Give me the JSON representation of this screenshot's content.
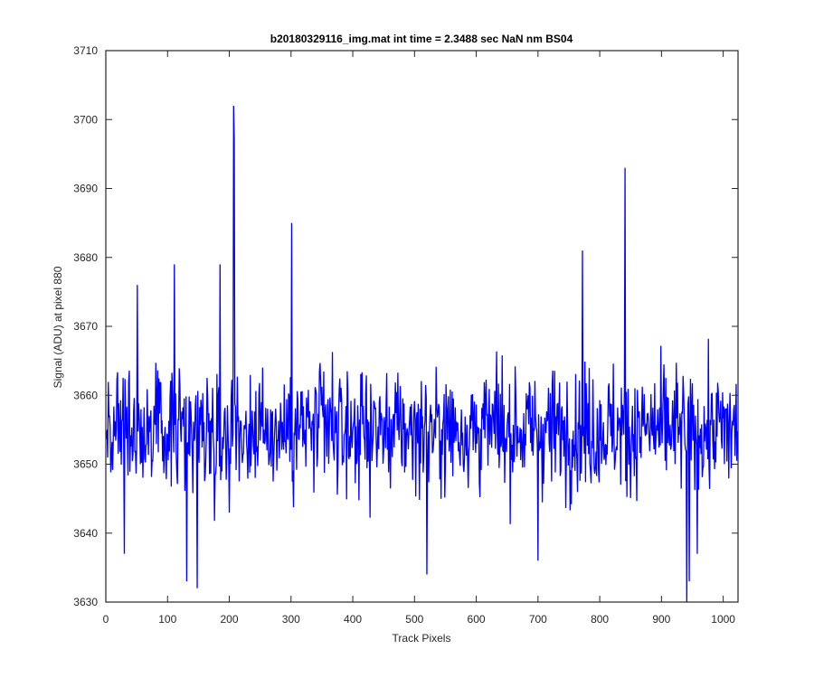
{
  "chart_data": {
    "type": "line",
    "title": "b20180329116_img.mat int time = 2.3488 sec  NaN nm BS04",
    "xlabel": "Track Pixels",
    "ylabel": "Signal (ADU) at pixel 880",
    "xlim": [
      0,
      1024
    ],
    "ylim": [
      3630,
      3710
    ],
    "xticks": [
      0,
      100,
      200,
      300,
      400,
      500,
      600,
      700,
      800,
      900,
      1000
    ],
    "yticks": [
      3630,
      3640,
      3650,
      3660,
      3670,
      3680,
      3690,
      3700,
      3710
    ],
    "grid": false,
    "series": [
      {
        "color": "#0000ff",
        "n_points": 1024,
        "baseline": 3655,
        "approx_noise_range": [
          3634,
          3678
        ],
        "notable_points": [
          {
            "x": 207,
            "y": 3702
          },
          {
            "x": 208,
            "y": 3697
          },
          {
            "x": 301,
            "y": 3685
          },
          {
            "x": 841,
            "y": 3693
          },
          {
            "x": 772,
            "y": 3681
          },
          {
            "x": 111,
            "y": 3679
          },
          {
            "x": 185,
            "y": 3679
          },
          {
            "x": 51,
            "y": 3676
          },
          {
            "x": 131,
            "y": 3633
          },
          {
            "x": 148,
            "y": 3632
          },
          {
            "x": 520,
            "y": 3634
          },
          {
            "x": 941,
            "y": 3630
          },
          {
            "x": 945,
            "y": 3633
          },
          {
            "x": 958,
            "y": 3637
          },
          {
            "x": 700,
            "y": 3636
          },
          {
            "x": 30,
            "y": 3637
          }
        ]
      }
    ]
  }
}
